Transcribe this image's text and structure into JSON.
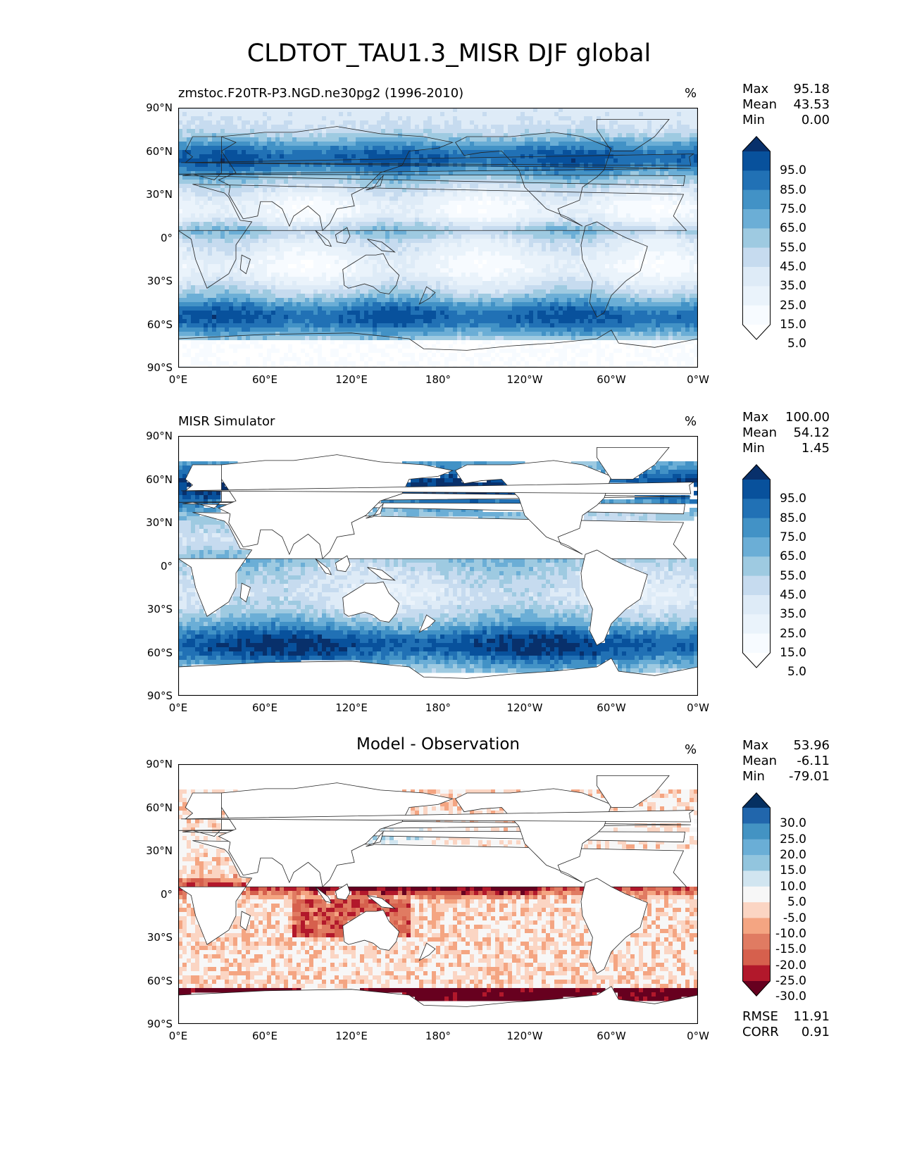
{
  "figure": {
    "title": "CLDTOT_TAU1.3_MISR DJF global"
  },
  "axes": {
    "lat_ticks": [
      "90°N",
      "60°N",
      "30°N",
      "0°",
      "30°S",
      "60°S",
      "90°S"
    ],
    "lon_ticks": [
      "0°E",
      "60°E",
      "120°E",
      "180°",
      "120°W",
      "60°W",
      "0°W"
    ]
  },
  "panels": [
    {
      "title": "zmstoc.F20TR-P3.NGD.ne30pg2 (1996-2010)",
      "title_style": "left",
      "units": "%",
      "stats": [
        {
          "k": "Max",
          "v": "95.18"
        },
        {
          "k": "Mean",
          "v": "43.53"
        },
        {
          "k": "Min",
          "v": "0.00"
        }
      ],
      "colorbar": {
        "labels": [
          "95.0",
          "85.0",
          "75.0",
          "65.0",
          "55.0",
          "45.0",
          "35.0",
          "25.0",
          "15.0",
          "5.0"
        ],
        "colors": [
          "#08306b",
          "#08519c",
          "#2171b5",
          "#4292c6",
          "#6baed6",
          "#9ecae1",
          "#c6dbef",
          "#deebf7",
          "#eaf3fb",
          "#f7fbff",
          "#ffffff"
        ]
      }
    },
    {
      "title": "MISR Simulator",
      "title_style": "left",
      "units": "%",
      "stats": [
        {
          "k": "Max",
          "v": "100.00"
        },
        {
          "k": "Mean",
          "v": "54.12"
        },
        {
          "k": "Min",
          "v": "1.45"
        }
      ],
      "colorbar": {
        "labels": [
          "95.0",
          "85.0",
          "75.0",
          "65.0",
          "55.0",
          "45.0",
          "35.0",
          "25.0",
          "15.0",
          "5.0"
        ],
        "colors": [
          "#08306b",
          "#08519c",
          "#2171b5",
          "#4292c6",
          "#6baed6",
          "#9ecae1",
          "#c6dbef",
          "#deebf7",
          "#eaf3fb",
          "#f7fbff",
          "#ffffff"
        ]
      }
    },
    {
      "title": "Model - Observation",
      "title_style": "center",
      "units": "%",
      "stats": [
        {
          "k": "Max",
          "v": "53.96"
        },
        {
          "k": "Mean",
          "v": "-6.11"
        },
        {
          "k": "Min",
          "v": "-79.01"
        }
      ],
      "colorbar": {
        "labels": [
          "30.0",
          "25.0",
          "20.0",
          "15.0",
          "10.0",
          "5.0",
          "-5.0",
          "-10.0",
          "-15.0",
          "-20.0",
          "-25.0",
          "-30.0"
        ],
        "colors": [
          "#053061",
          "#2166ac",
          "#4393c3",
          "#6aaed6",
          "#92c5de",
          "#d1e5f0",
          "#f7f7f7",
          "#fbd5c3",
          "#f4a582",
          "#e07b62",
          "#d6604d",
          "#b2182b",
          "#67001f"
        ]
      },
      "extra": [
        {
          "k": "RMSE",
          "v": "11.91"
        },
        {
          "k": "CORR",
          "v": "0.91"
        }
      ]
    }
  ]
}
